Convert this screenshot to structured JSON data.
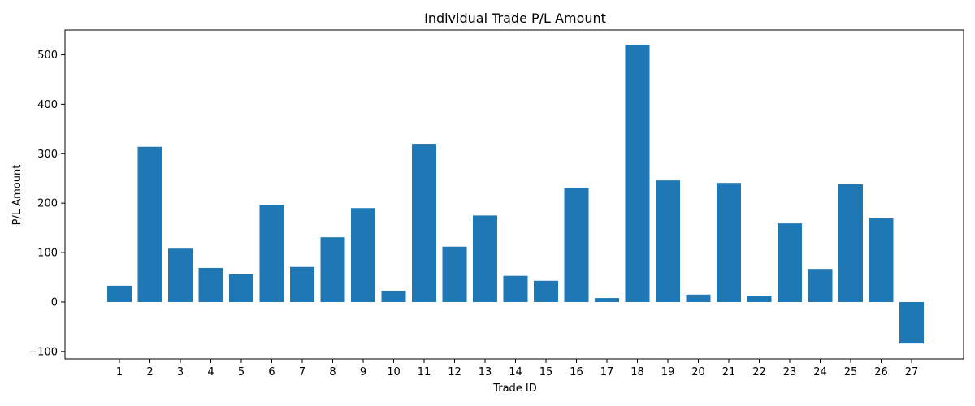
{
  "chart_data": {
    "type": "bar",
    "title": "Individual Trade P/L Amount",
    "xlabel": "Trade ID",
    "ylabel": "P/L Amount",
    "categories": [
      "1",
      "2",
      "3",
      "4",
      "5",
      "6",
      "7",
      "8",
      "9",
      "10",
      "11",
      "12",
      "13",
      "14",
      "15",
      "16",
      "17",
      "18",
      "19",
      "20",
      "21",
      "22",
      "23",
      "24",
      "25",
      "26",
      "27"
    ],
    "values": [
      33,
      314,
      108,
      69,
      56,
      197,
      71,
      131,
      190,
      23,
      320,
      112,
      175,
      53,
      43,
      231,
      8,
      520,
      246,
      15,
      241,
      13,
      159,
      67,
      238,
      169,
      -84
    ],
    "ylim": [
      -115,
      550
    ],
    "yticks": [
      -100,
      0,
      100,
      200,
      300,
      400,
      500
    ],
    "bar_color": "#1f77b4",
    "grid": false,
    "legend": "none"
  }
}
